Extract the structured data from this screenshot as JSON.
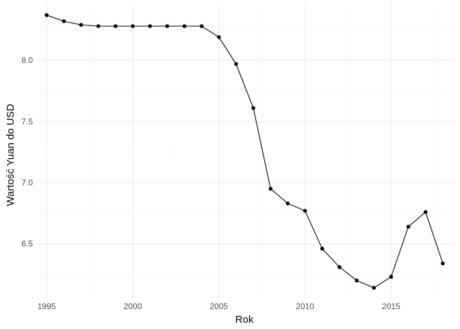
{
  "chart_data": {
    "type": "line",
    "title": "",
    "xlabel": "Rok",
    "ylabel": "Wartość Yuan do USD",
    "xlim": [
      1994.4,
      2018.6
    ],
    "ylim": [
      6.05,
      8.46
    ],
    "x_ticks": [
      1995,
      2000,
      2005,
      2010,
      2015
    ],
    "x_tick_labels": [
      "1995",
      "2000",
      "2005",
      "2010",
      "2015"
    ],
    "y_ticks": [
      6.5,
      7.0,
      7.5,
      8.0
    ],
    "y_tick_labels": [
      "6.5",
      "7.0",
      "7.5",
      "8.0"
    ],
    "grid": true,
    "line_color": "#000000",
    "point_color": "#000000",
    "x": [
      1995,
      1996,
      1997,
      1998,
      1999,
      2000,
      2001,
      2002,
      2003,
      2004,
      2005,
      2006,
      2007,
      2008,
      2009,
      2010,
      2011,
      2012,
      2013,
      2014,
      2015,
      2016,
      2017,
      2018
    ],
    "y": [
      8.37,
      8.32,
      8.29,
      8.28,
      8.28,
      8.28,
      8.28,
      8.28,
      8.28,
      8.28,
      8.19,
      7.97,
      7.61,
      6.95,
      6.83,
      6.77,
      6.46,
      6.31,
      6.2,
      6.14,
      6.23,
      6.64,
      6.76,
      6.34
    ]
  }
}
